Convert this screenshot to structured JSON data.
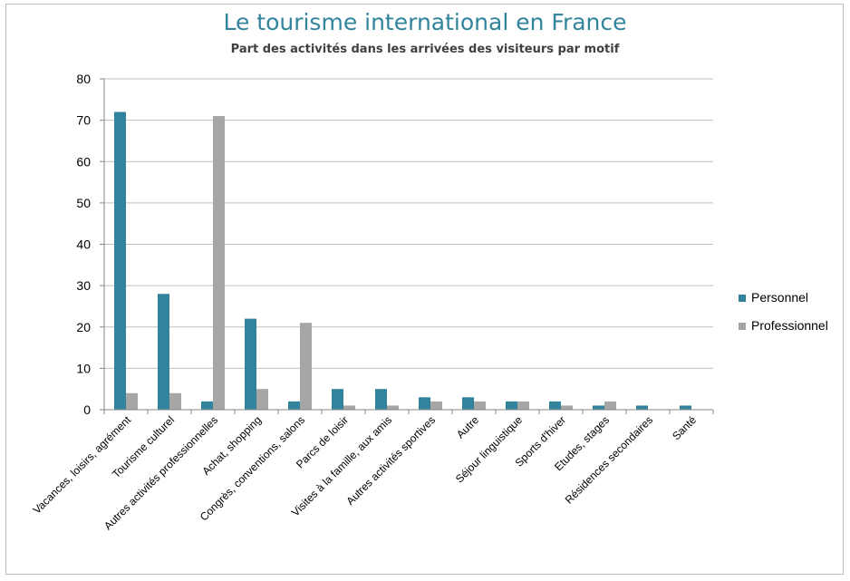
{
  "title": "Le tourisme international en France",
  "subtitle": "Part des activités dans les arrivées des visiteurs par motif",
  "colors": {
    "personnel": "#31849b",
    "professionnel": "#a6a6a6",
    "grid": "#bfbfbf",
    "title": "#31849b"
  },
  "chart_data": {
    "type": "bar",
    "title": "Le tourisme international en France",
    "subtitle": "Part des activités dans les arrivées des visiteurs par motif",
    "xlabel": "",
    "ylabel": "",
    "ylim": [
      0,
      80
    ],
    "yticks": [
      0,
      10,
      20,
      30,
      40,
      50,
      60,
      70,
      80
    ],
    "grid": true,
    "legend_position": "right",
    "categories": [
      "Vacances, loisirs, agrément",
      "Tourisme culturel",
      "Autres activités professionnelles",
      "Achat, shopping",
      "Congrès, conventions, salons",
      "Parcs de loisir",
      "Visites à la famille, aux amis",
      "Autres activités sportives",
      "Autre",
      "Séjour linguistique",
      "Sports d'hiver",
      "Etudes, stages",
      "Résidences secondaires",
      "Santé"
    ],
    "series": [
      {
        "name": "Personnel",
        "color": "#31849b",
        "values": [
          72,
          28,
          2,
          22,
          2,
          5,
          5,
          3,
          3,
          2,
          2,
          1,
          1,
          1
        ]
      },
      {
        "name": "Professionnel",
        "color": "#a6a6a6",
        "values": [
          4,
          4,
          71,
          5,
          21,
          1,
          1,
          2,
          2,
          2,
          1,
          2,
          0,
          0
        ]
      }
    ]
  }
}
